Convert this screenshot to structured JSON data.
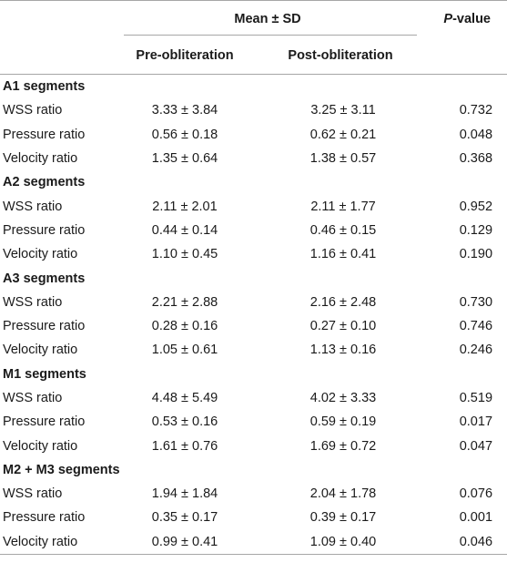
{
  "header": {
    "mean_sd": "Mean ± SD",
    "p_value_italic": "P",
    "p_value_rest": "-value",
    "pre": "Pre-obliteration",
    "post": "Post-obliteration"
  },
  "groups": [
    {
      "title": "A1 segments",
      "rows": [
        {
          "label": "WSS ratio",
          "pre": "3.33 ± 3.84",
          "post": "3.25 ± 3.11",
          "p": "0.732"
        },
        {
          "label": "Pressure ratio",
          "pre": "0.56 ± 0.18",
          "post": "0.62 ± 0.21",
          "p": "0.048"
        },
        {
          "label": "Velocity ratio",
          "pre": "1.35 ± 0.64",
          "post": "1.38 ± 0.57",
          "p": "0.368"
        }
      ]
    },
    {
      "title": "A2 segments",
      "rows": [
        {
          "label": "WSS ratio",
          "pre": "2.11 ± 2.01",
          "post": "2.11 ± 1.77",
          "p": "0.952"
        },
        {
          "label": "Pressure ratio",
          "pre": "0.44 ± 0.14",
          "post": "0.46 ± 0.15",
          "p": "0.129"
        },
        {
          "label": "Velocity ratio",
          "pre": "1.10 ± 0.45",
          "post": "1.16 ± 0.41",
          "p": "0.190"
        }
      ]
    },
    {
      "title": "A3 segments",
      "rows": [
        {
          "label": "WSS ratio",
          "pre": "2.21 ± 2.88",
          "post": "2.16 ± 2.48",
          "p": "0.730"
        },
        {
          "label": "Pressure ratio",
          "pre": "0.28 ± 0.16",
          "post": "0.27 ± 0.10",
          "p": "0.746"
        },
        {
          "label": "Velocity ratio",
          "pre": "1.05 ± 0.61",
          "post": "1.13 ± 0.16",
          "p": "0.246"
        }
      ]
    },
    {
      "title": "M1 segments",
      "rows": [
        {
          "label": "WSS ratio",
          "pre": "4.48 ± 5.49",
          "post": "4.02 ± 3.33",
          "p": "0.519"
        },
        {
          "label": "Pressure ratio",
          "pre": "0.53 ± 0.16",
          "post": "0.59 ± 0.19",
          "p": "0.017"
        },
        {
          "label": "Velocity ratio",
          "pre": "1.61 ± 0.76",
          "post": "1.69 ± 0.72",
          "p": "0.047"
        }
      ]
    },
    {
      "title": "M2 + M3 segments",
      "rows": [
        {
          "label": "WSS ratio",
          "pre": "1.94 ± 1.84",
          "post": "2.04 ± 1.78",
          "p": "0.076"
        },
        {
          "label": "Pressure ratio",
          "pre": "0.35 ± 0.17",
          "post": "0.39 ± 0.17",
          "p": "0.001"
        },
        {
          "label": "Velocity ratio",
          "pre": "0.99 ± 0.41",
          "post": "1.09 ± 0.40",
          "p": "0.046"
        }
      ]
    }
  ]
}
